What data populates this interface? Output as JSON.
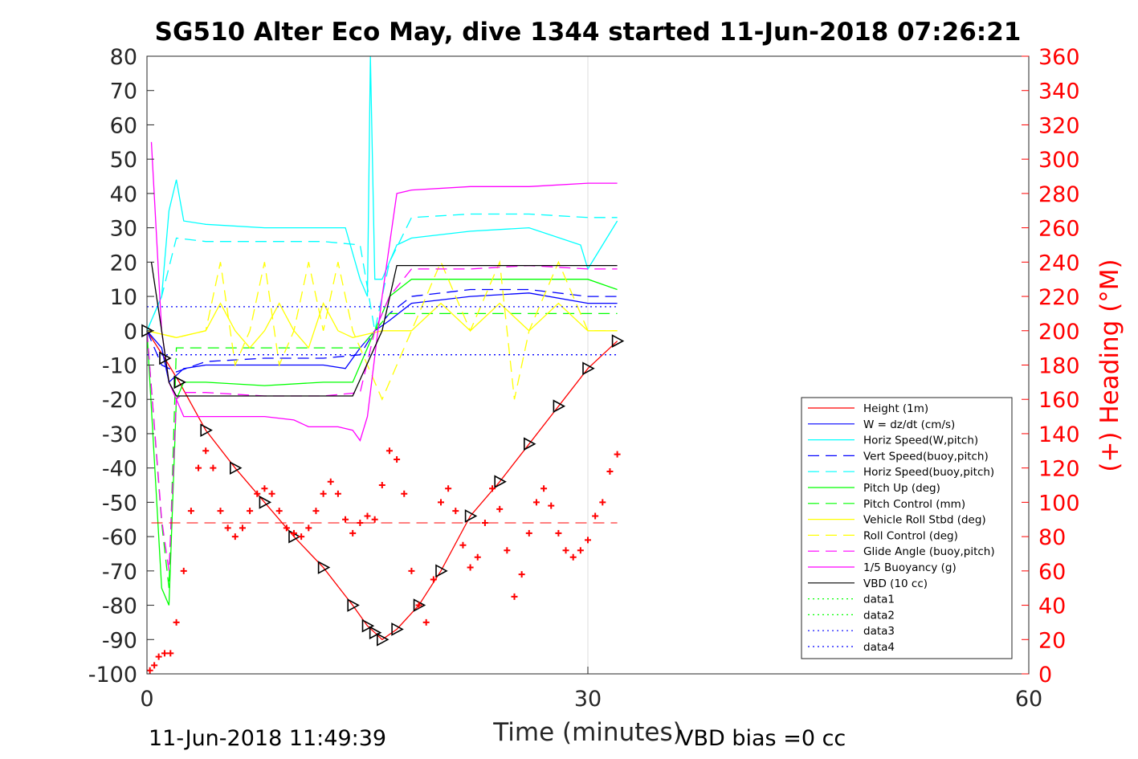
{
  "chart_data": {
    "type": "line",
    "title": "SG510 Alter Eco May, dive 1344 started 11-Jun-2018 07:26:21",
    "xlabel": "Time (minutes)",
    "ylabel_right": "(+) Heading (°M)",
    "xlim": [
      0,
      60
    ],
    "ylim_left": [
      -100,
      80
    ],
    "ylim_right": [
      0,
      360
    ],
    "x_ticks": [
      "0",
      "30",
      "60"
    ],
    "y_left_ticks": [
      "80",
      "70",
      "60",
      "50",
      "40",
      "30",
      "20",
      "10",
      "0",
      "-10",
      "-20",
      "-30",
      "-40",
      "-50",
      "-60",
      "-70",
      "-80",
      "-90",
      "-100"
    ],
    "y_right_ticks": [
      "360",
      "340",
      "320",
      "300",
      "280",
      "260",
      "240",
      "220",
      "200",
      "180",
      "160",
      "140",
      "120",
      "100",
      "80",
      "60",
      "40",
      "20",
      "0"
    ],
    "footer_left": "11-Jun-2018 11:49:39",
    "footer_right": "VBD bias =0 cc",
    "grid": "x-only",
    "legend_position": "lower-right",
    "colors": {
      "axis": "#262626",
      "right_axis": "#ff0000",
      "grid": "#dcdcdc"
    },
    "series": [
      {
        "name": "Height (1m)",
        "color": "#ff0000",
        "style": "solid",
        "marker": "triangle",
        "x": [
          0,
          1.2,
          2.2,
          4,
          6,
          8,
          10,
          12,
          14,
          15,
          15.5,
          16,
          17,
          18.5,
          20,
          22,
          24,
          26,
          28,
          30,
          32
        ],
        "y": [
          0,
          -8,
          -15,
          -29,
          -40,
          -50,
          -60,
          -69,
          -80,
          -86,
          -88,
          -90,
          -87,
          -80,
          -70,
          -54,
          -44,
          -33,
          -22,
          -11,
          -3
        ]
      },
      {
        "name": "W = dz/dt (cm/s)",
        "color": "#0000ff",
        "style": "solid",
        "x": [
          0,
          1,
          1.5,
          2.5,
          4,
          8,
          12,
          13.5,
          14.5,
          15.5,
          16.5,
          18,
          22,
          26,
          30,
          32
        ],
        "y": [
          0,
          -5,
          -15,
          -11,
          -10,
          -10,
          -10,
          -11,
          -5,
          0,
          3,
          8,
          10,
          11,
          8,
          8
        ]
      },
      {
        "name": "Horiz Speed(W,pitch)",
        "color": "#00ffff",
        "style": "solid",
        "x": [
          0,
          1,
          1.5,
          2,
          2.5,
          4,
          8,
          12,
          13.5,
          14.5,
          15,
          15.2,
          15.5,
          16,
          17,
          18,
          22,
          26,
          29.5,
          30,
          31,
          32
        ],
        "y": [
          0,
          10,
          35,
          44,
          32,
          31,
          30,
          30,
          30,
          15,
          10,
          80,
          15,
          15,
          25,
          27,
          29,
          30,
          25,
          18,
          25,
          32
        ]
      },
      {
        "name": "Vert Speed(buoy,pitch)",
        "color": "#0000ff",
        "style": "dashed",
        "x": [
          0,
          1,
          2,
          4,
          8,
          12,
          14.5,
          15.5,
          16.5,
          18,
          22,
          26,
          30,
          32
        ],
        "y": [
          0,
          -10,
          -12,
          -9,
          -8,
          -8,
          -7,
          0,
          5,
          10,
          12,
          12,
          10,
          10
        ]
      },
      {
        "name": "Horiz Speed(buoy,pitch)",
        "color": "#00ffff",
        "style": "dashed",
        "x": [
          0,
          1,
          2,
          4,
          8,
          12,
          14.5,
          15.5,
          16.5,
          18,
          22,
          26,
          30,
          32
        ],
        "y": [
          0,
          10,
          27,
          26,
          26,
          26,
          25,
          0,
          20,
          33,
          34,
          34,
          33,
          33
        ]
      },
      {
        "name": "Pitch Up (deg)",
        "color": "#00ff00",
        "style": "solid",
        "x": [
          0,
          1,
          1.5,
          2,
          2.5,
          4,
          8,
          12,
          14,
          14.5,
          15.5,
          16.5,
          18,
          22,
          26,
          30,
          32
        ],
        "y": [
          0,
          -75,
          -80,
          -20,
          -15,
          -15,
          -16,
          -15,
          -15,
          -10,
          0,
          10,
          15,
          15,
          15,
          15,
          12
        ]
      },
      {
        "name": "Pitch Control (mm)",
        "color": "#00ff00",
        "style": "dashed",
        "x": [
          0,
          1,
          1.5,
          2,
          2.5,
          8,
          12,
          14.5,
          16.5,
          18,
          26,
          30,
          32
        ],
        "y": [
          0,
          -56,
          -75,
          -5,
          -5,
          -5,
          -5,
          -5,
          5,
          5,
          5,
          5,
          5
        ]
      },
      {
        "name": "Vehicle Roll Stbd (deg)",
        "color": "#ffff00",
        "style": "solid",
        "x": [
          0,
          2,
          4,
          5,
          6,
          7,
          8,
          9,
          10,
          11,
          12,
          13,
          14,
          16,
          18,
          20,
          22,
          24,
          26,
          28,
          30,
          32
        ],
        "y": [
          0,
          -2,
          0,
          8,
          0,
          -5,
          0,
          8,
          0,
          -5,
          8,
          0,
          -2,
          0,
          0,
          8,
          0,
          8,
          0,
          8,
          0,
          0
        ]
      },
      {
        "name": "Roll Control (deg)",
        "color": "#ffff00",
        "style": "dashed",
        "x": [
          0,
          2,
          4,
          5,
          6,
          7,
          8,
          9,
          10,
          11,
          12,
          13,
          14,
          16,
          18,
          20,
          22,
          24,
          25,
          26,
          28,
          30,
          32
        ],
        "y": [
          0,
          -2,
          0,
          20,
          -10,
          0,
          20,
          -10,
          0,
          20,
          0,
          20,
          0,
          -20,
          0,
          20,
          0,
          20,
          -20,
          0,
          20,
          0,
          0
        ]
      },
      {
        "name": "Glide Angle (buoy,pitch)",
        "color": "#ff00ff",
        "style": "dashed",
        "x": [
          0,
          1,
          1.5,
          2,
          2.5,
          4,
          8,
          12,
          14.5,
          15.5,
          16.5,
          18,
          22,
          26,
          30,
          32
        ],
        "y": [
          0,
          -55,
          -70,
          -20,
          -18,
          -18,
          -19,
          -19,
          -18,
          0,
          10,
          18,
          18,
          19,
          18,
          18
        ]
      },
      {
        "name": "1/5 Buoyancy (g)",
        "color": "#ff00ff",
        "style": "solid",
        "x": [
          0.3,
          1,
          1.5,
          2.5,
          4,
          8,
          10,
          11,
          12,
          13,
          14,
          14.5,
          15,
          16,
          17,
          18,
          22,
          26,
          30,
          32
        ],
        "y": [
          55,
          0,
          -15,
          -25,
          -25,
          -25,
          -26,
          -28,
          -28,
          -28,
          -29,
          -32,
          -25,
          10,
          40,
          41,
          42,
          42,
          43,
          43
        ]
      },
      {
        "name": "VBD (10 cc)",
        "color": "#000000",
        "style": "solid",
        "x": [
          0.3,
          1,
          1.5,
          2,
          4,
          8,
          12,
          14,
          16,
          17,
          18,
          22,
          26,
          30,
          32
        ],
        "y": [
          20,
          0,
          -15,
          -19,
          -19,
          -19,
          -19,
          -19,
          0,
          19,
          19,
          19,
          19,
          19,
          19
        ]
      },
      {
        "name": "data1",
        "color": "#00ff00",
        "style": "dotted",
        "x": [],
        "y": []
      },
      {
        "name": "data2",
        "color": "#00ff00",
        "style": "dotted",
        "x": [],
        "y": []
      },
      {
        "name": "data3",
        "color": "#0000ff",
        "style": "dotted",
        "x": [
          0,
          32
        ],
        "y": [
          7,
          7
        ]
      },
      {
        "name": "data4",
        "color": "#0000ff",
        "style": "dotted",
        "x": [
          0,
          32
        ],
        "y": [
          -7,
          -7
        ]
      }
    ],
    "heading_series": {
      "color": "#ff0000",
      "marker": "+",
      "mean_line_y_left": -56,
      "x": [
        0.2,
        0.5,
        0.8,
        1.2,
        1.6,
        2.0,
        2.5,
        3.0,
        3.5,
        4.0,
        4.5,
        5.0,
        5.5,
        6.0,
        6.5,
        7.0,
        7.5,
        8.0,
        8.5,
        9.0,
        9.5,
        10.0,
        10.5,
        11.0,
        11.5,
        12.0,
        12.5,
        13.0,
        13.5,
        14.0,
        14.5,
        15.0,
        15.5,
        16.0,
        16.5,
        17.0,
        17.5,
        18.0,
        18.5,
        19.0,
        19.5,
        20.0,
        20.5,
        21.0,
        21.5,
        22.0,
        22.5,
        23.0,
        23.5,
        24.0,
        24.5,
        25.0,
        25.5,
        26.0,
        26.5,
        27.0,
        27.5,
        28.0,
        28.5,
        29.0,
        29.5,
        30.0,
        30.5,
        31.0,
        31.5,
        32.0
      ],
      "y": [
        2,
        5,
        10,
        12,
        12,
        30,
        60,
        95,
        120,
        130,
        120,
        95,
        85,
        80,
        85,
        95,
        105,
        108,
        105,
        95,
        85,
        82,
        80,
        85,
        95,
        105,
        112,
        105,
        90,
        82,
        88,
        92,
        90,
        110,
        130,
        125,
        105,
        60,
        40,
        30,
        55,
        100,
        108,
        95,
        75,
        62,
        68,
        88,
        108,
        96,
        72,
        45,
        58,
        82,
        100,
        108,
        98,
        82,
        72,
        68,
        72,
        78,
        92,
        100,
        118,
        128
      ]
    }
  }
}
